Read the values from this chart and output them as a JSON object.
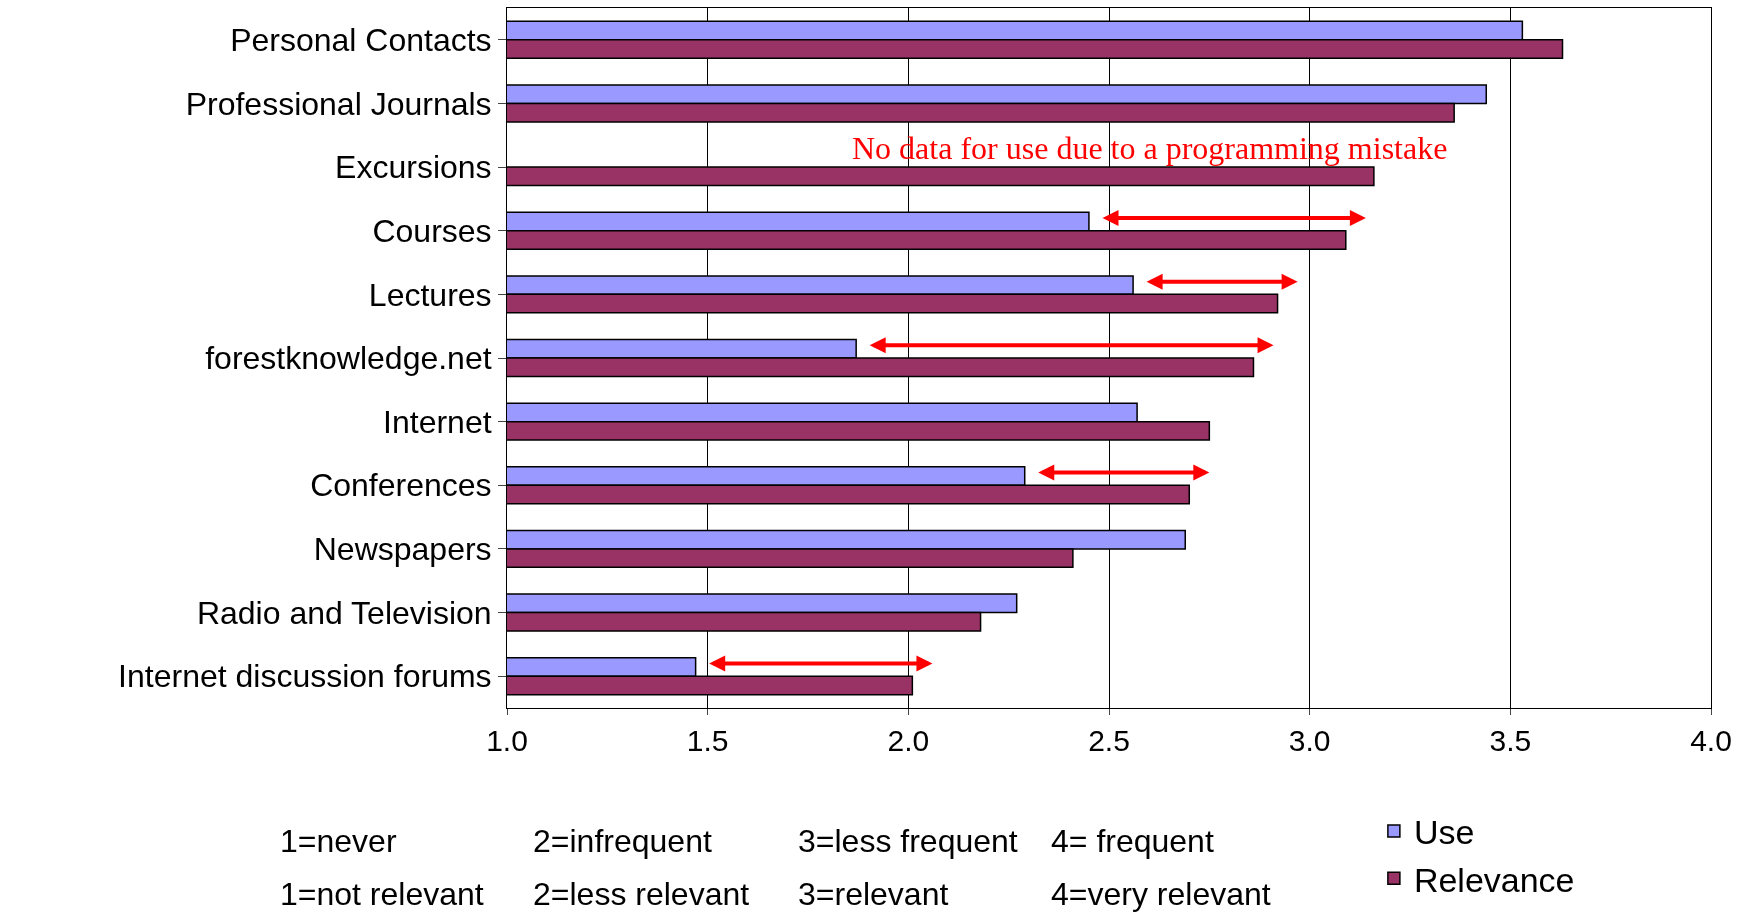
{
  "chart_data": {
    "type": "bar",
    "orientation": "horizontal",
    "categories": [
      "Personal Contacts",
      "Professional Journals",
      "Excursions",
      "Courses",
      "Lectures",
      "forestknowledge.net",
      "Internet",
      "Conferences",
      "Newspapers",
      "Radio and Television",
      "Internet discussion forums"
    ],
    "series": [
      {
        "name": "Use",
        "color": "#9999ff",
        "values": [
          3.53,
          3.44,
          null,
          2.45,
          2.56,
          1.87,
          2.57,
          2.29,
          2.69,
          2.27,
          1.47
        ]
      },
      {
        "name": "Relevance",
        "color": "#993366",
        "values": [
          3.63,
          3.36,
          3.16,
          3.09,
          2.92,
          2.86,
          2.75,
          2.7,
          2.41,
          2.18,
          2.01
        ]
      }
    ],
    "xlim": [
      1,
      4
    ],
    "xticks": [
      {
        "value": 1,
        "label": "1.0"
      },
      {
        "value": 1.5,
        "label": "1.5"
      },
      {
        "value": 2,
        "label": "2.0"
      },
      {
        "value": 2.5,
        "label": "2.5"
      },
      {
        "value": 3,
        "label": "3.0"
      },
      {
        "value": 3.5,
        "label": "3.5"
      },
      {
        "value": 4,
        "label": "4.0"
      }
    ],
    "grid": "x",
    "legend": "bottom right",
    "annotations": [
      {
        "text": "No data for use due to a programming mistake",
        "x": 2.6,
        "y": "Excursions"
      },
      "1=never",
      "2=infrequent",
      "3=less frequent",
      "4= frequent",
      "1=not relevant",
      "2=less relevant",
      "3=relevant",
      "4=very relevant"
    ]
  }
}
